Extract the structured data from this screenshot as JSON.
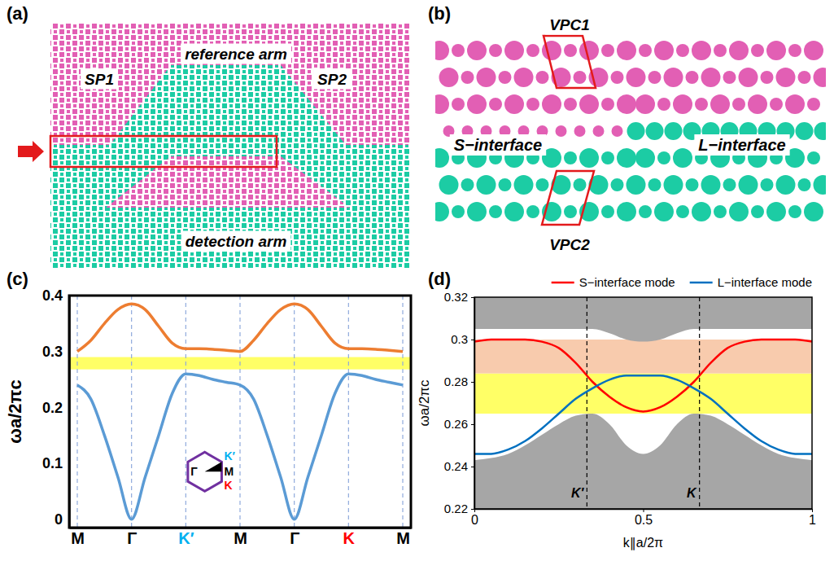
{
  "panel_labels": [
    "(a)",
    "(b)",
    "(c)",
    "(d)"
  ],
  "panel_a": {
    "reference_arm": "reference arm",
    "sp1": "SP1",
    "sp2": "SP2",
    "detection_arm": "detection arm"
  },
  "panel_b": {
    "vpc1": "VPC1",
    "vpc2": "VPC2",
    "s_interface": "S−interface",
    "l_interface": "L−interface"
  },
  "chart_data": [
    {
      "type": "line",
      "ylabel": "ωa/2πc",
      "xlim": [
        -0.15,
        6.15
      ],
      "xticks": [
        {
          "value": 0,
          "label": "M"
        },
        {
          "value": 1,
          "label": "Γ"
        },
        {
          "value": 2,
          "label": "K′"
        },
        {
          "value": 3,
          "label": "M"
        },
        {
          "value": 4,
          "label": "Γ"
        },
        {
          "value": 5,
          "label": "K"
        },
        {
          "value": 6,
          "label": "M"
        }
      ],
      "ylim": [
        -0.015,
        0.4
      ],
      "yticks": [
        0,
        0.1,
        0.2,
        0.3,
        0.4
      ],
      "grid": "x",
      "x": [
        0,
        0.25,
        0.5,
        0.75,
        1,
        1.25,
        1.5,
        1.75,
        2,
        2.25,
        2.5,
        2.75,
        3,
        3.25,
        3.5,
        3.75,
        4,
        4.25,
        4.5,
        4.75,
        5,
        5.25,
        5.5,
        5.75,
        6
      ],
      "series": [
        {
          "color": "#ed7d31",
          "values": [
            0.3,
            0.32,
            0.35,
            0.375,
            0.385,
            0.375,
            0.345,
            0.315,
            0.305,
            0.305,
            0.304,
            0.302,
            0.3,
            0.32,
            0.35,
            0.375,
            0.385,
            0.375,
            0.345,
            0.315,
            0.305,
            0.305,
            0.304,
            0.302,
            0.3
          ]
        },
        {
          "color": "#5b9bd5",
          "values": [
            0.24,
            0.215,
            0.15,
            0.075,
            0,
            0.075,
            0.15,
            0.225,
            0.26,
            0.257,
            0.25,
            0.245,
            0.24,
            0.215,
            0.15,
            0.075,
            0,
            0.075,
            0.15,
            0.225,
            0.26,
            0.257,
            0.25,
            0.245,
            0.24
          ]
        }
      ],
      "shaded_bands": [
        {
          "range": [
            0.268,
            0.29
          ],
          "color": "#ffff66"
        }
      ],
      "annotations": [
        "Γ",
        "K′",
        "M",
        "K"
      ]
    },
    {
      "type": "line",
      "xlabel": "k∥a/2π",
      "ylabel": "ωa/2πc",
      "xlim": [
        0,
        1
      ],
      "xticks": [
        0,
        0.5,
        1
      ],
      "ylim": [
        0.22,
        0.32
      ],
      "yticks": [
        0.22,
        0.24,
        0.26,
        0.28,
        0.3,
        0.32
      ],
      "legend": "top",
      "x": [
        0,
        0.05,
        0.1,
        0.15,
        0.2,
        0.25,
        0.3,
        0.35,
        0.4,
        0.45,
        0.5,
        0.55,
        0.6,
        0.65,
        0.7,
        0.75,
        0.8,
        0.85,
        0.9,
        0.95,
        1
      ],
      "series": [
        {
          "name": "S−interface mode",
          "color": "#ff0000",
          "values": [
            0.299,
            0.3,
            0.3,
            0.3,
            0.299,
            0.296,
            0.289,
            0.28,
            0.273,
            0.268,
            0.266,
            0.268,
            0.273,
            0.28,
            0.289,
            0.296,
            0.299,
            0.3,
            0.3,
            0.3,
            0.299
          ]
        },
        {
          "name": "L−interface mode",
          "color": "#0070c0",
          "values": [
            0.246,
            0.246,
            0.248,
            0.252,
            0.258,
            0.265,
            0.272,
            0.277,
            0.281,
            0.283,
            0.283,
            0.283,
            0.281,
            0.277,
            0.272,
            0.265,
            0.258,
            0.252,
            0.248,
            0.246,
            0.246
          ]
        }
      ],
      "shaded_bands": [
        {
          "range": [
            0.265,
            0.284
          ],
          "color": "#ffff66"
        },
        {
          "range": [
            0.284,
            0.3
          ],
          "color": "#f8cbad"
        }
      ],
      "bulk_bands": [
        {
          "color": "#a6a6a6",
          "lower": [
            0.305,
            0.305,
            0.305,
            0.305,
            0.305,
            0.305,
            0.305,
            0.305,
            0.303,
            0.3,
            0.299,
            0.3,
            0.303,
            0.305,
            0.305,
            0.305,
            0.305,
            0.305,
            0.305,
            0.305,
            0.305
          ],
          "upper": [
            0.32,
            0.32,
            0.32,
            0.32,
            0.32,
            0.32,
            0.32,
            0.32,
            0.32,
            0.32,
            0.32,
            0.32,
            0.32,
            0.32,
            0.32,
            0.32,
            0.32,
            0.32,
            0.32,
            0.32,
            0.32
          ]
        },
        {
          "color": "#a6a6a6",
          "lower": [
            0.22,
            0.22,
            0.22,
            0.22,
            0.22,
            0.22,
            0.22,
            0.22,
            0.22,
            0.22,
            0.22,
            0.22,
            0.22,
            0.22,
            0.22,
            0.22,
            0.22,
            0.22,
            0.22,
            0.22,
            0.22
          ],
          "upper": [
            0.243,
            0.244,
            0.246,
            0.25,
            0.255,
            0.26,
            0.264,
            0.265,
            0.26,
            0.25,
            0.246,
            0.25,
            0.26,
            0.265,
            0.264,
            0.26,
            0.255,
            0.25,
            0.246,
            0.244,
            0.243
          ]
        }
      ],
      "annotations": [
        {
          "x": 0.3333,
          "label": "K′"
        },
        {
          "x": 0.6667,
          "label": "K"
        }
      ]
    }
  ]
}
